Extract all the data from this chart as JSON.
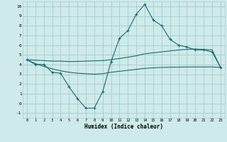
{
  "xlabel": "Humidex (Indice chaleur)",
  "bg_color": "#ceeaea",
  "grid_color": "#aacece",
  "line_color": "#1a6b6b",
  "xlim": [
    -0.5,
    23.5
  ],
  "ylim": [
    -1.5,
    10.5
  ],
  "xticks": [
    0,
    1,
    2,
    3,
    4,
    5,
    6,
    7,
    8,
    9,
    10,
    11,
    12,
    13,
    14,
    15,
    16,
    17,
    18,
    19,
    20,
    21,
    22,
    23
  ],
  "yticks": [
    -1,
    0,
    1,
    2,
    3,
    4,
    5,
    6,
    7,
    8,
    9,
    10
  ],
  "x": [
    0,
    1,
    2,
    3,
    4,
    5,
    6,
    7,
    8,
    9,
    10,
    11,
    12,
    13,
    14,
    15,
    16,
    17,
    18,
    19,
    20,
    21,
    22,
    23
  ],
  "line1_y": [
    4.5,
    4.0,
    4.0,
    3.2,
    3.1,
    1.7,
    0.5,
    -0.5,
    -0.5,
    1.2,
    4.3,
    6.7,
    7.5,
    9.2,
    10.2,
    8.6,
    8.0,
    6.6,
    6.0,
    5.8,
    5.5,
    5.5,
    5.3,
    3.7
  ],
  "line2_y": [
    4.5,
    4.45,
    4.4,
    4.35,
    4.35,
    4.3,
    4.32,
    4.35,
    4.38,
    4.4,
    4.5,
    4.62,
    4.75,
    4.9,
    5.1,
    5.2,
    5.3,
    5.4,
    5.5,
    5.55,
    5.6,
    5.55,
    5.5,
    3.7
  ],
  "line3_y": [
    4.5,
    4.1,
    3.8,
    3.55,
    3.35,
    3.2,
    3.1,
    3.05,
    3.0,
    3.05,
    3.2,
    3.3,
    3.4,
    3.5,
    3.6,
    3.65,
    3.7,
    3.72,
    3.73,
    3.74,
    3.75,
    3.75,
    3.75,
    3.7
  ]
}
